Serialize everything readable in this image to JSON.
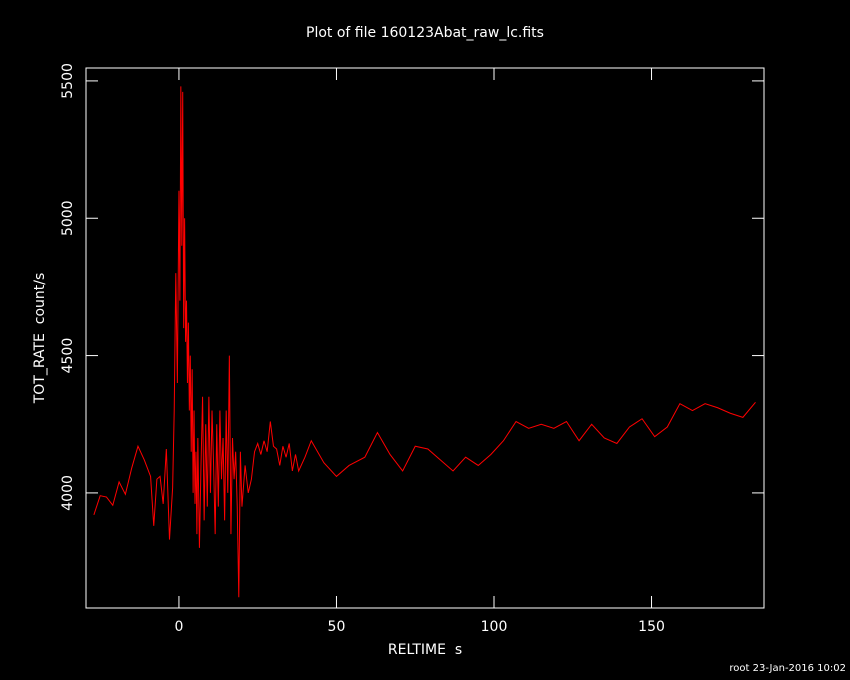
{
  "chart_data": {
    "type": "line",
    "title": "Plot of file 160123Abat_raw_lc.fits",
    "x_label": "RELTIME  s",
    "y_label": "TOT_RATE  count/s",
    "footer": "root 23-Jan-2016 10:02",
    "color": "#ff0000",
    "xlim": [
      -29.5,
      185.7
    ],
    "ylim": [
      3581,
      5547
    ],
    "xticks": [
      0,
      50,
      100,
      150
    ],
    "yticks": [
      4000,
      4500,
      5000,
      5500
    ],
    "x": [
      -27,
      -25,
      -23,
      -21,
      -19,
      -17,
      -15,
      -13,
      -11,
      -9,
      -8,
      -7,
      -6,
      -5,
      -4,
      -3,
      -2,
      -1.5,
      -1,
      -0.5,
      0,
      0.3,
      0.6,
      0.9,
      1.2,
      1.5,
      1.8,
      2.1,
      2.4,
      2.7,
      3,
      3.3,
      3.6,
      3.9,
      4.2,
      4.5,
      4.8,
      5.1,
      5.4,
      5.7,
      6,
      6.5,
      7,
      7.5,
      8,
      8.5,
      9,
      9.5,
      10,
      10.5,
      11,
      11.5,
      12,
      12.5,
      13,
      13.5,
      14,
      14.5,
      15,
      15.5,
      16,
      16.5,
      17,
      17.5,
      18,
      18.5,
      19,
      19.5,
      20,
      21,
      22,
      23,
      24,
      25,
      26,
      27,
      28,
      29,
      30,
      31,
      32,
      33,
      34,
      35,
      36,
      37,
      38,
      40,
      42,
      46,
      50,
      54,
      59,
      63,
      67,
      71,
      75,
      79,
      83,
      87,
      91,
      95,
      99,
      103,
      107,
      111,
      115,
      119,
      123,
      127,
      131,
      135,
      139,
      143,
      147,
      151,
      155,
      159,
      163,
      167,
      171,
      175,
      179,
      183
    ],
    "values": [
      3920,
      3990,
      3985,
      3955,
      4040,
      3995,
      4090,
      4170,
      4120,
      4060,
      3880,
      4050,
      4060,
      3960,
      4160,
      3830,
      4020,
      4300,
      4800,
      4400,
      5100,
      4700,
      5480,
      4900,
      5460,
      4600,
      5000,
      4550,
      4700,
      4400,
      4620,
      4300,
      4500,
      4150,
      4450,
      4000,
      4300,
      3960,
      4150,
      3850,
      4200,
      3800,
      4100,
      4350,
      3900,
      4250,
      3950,
      4350,
      4000,
      4300,
      4100,
      3850,
      4250,
      3950,
      4300,
      4050,
      4200,
      3900,
      4300,
      4000,
      4500,
      3850,
      4200,
      4050,
      4150,
      3950,
      3620,
      4150,
      3950,
      4100,
      4000,
      4050,
      4150,
      4180,
      4140,
      4190,
      4150,
      4260,
      4170,
      4160,
      4100,
      4170,
      4130,
      4180,
      4080,
      4140,
      4080,
      4130,
      4190,
      4110,
      4060,
      4100,
      4130,
      4220,
      4140,
      4080,
      4170,
      4160,
      4120,
      4080,
      4130,
      4100,
      4140,
      4190,
      4260,
      4235,
      4250,
      4235,
      4260,
      4190,
      4250,
      4200,
      4180,
      4240,
      4270,
      4205,
      4240,
      4325,
      4300,
      4325,
      4310,
      4290,
      4275,
      4330
    ]
  }
}
